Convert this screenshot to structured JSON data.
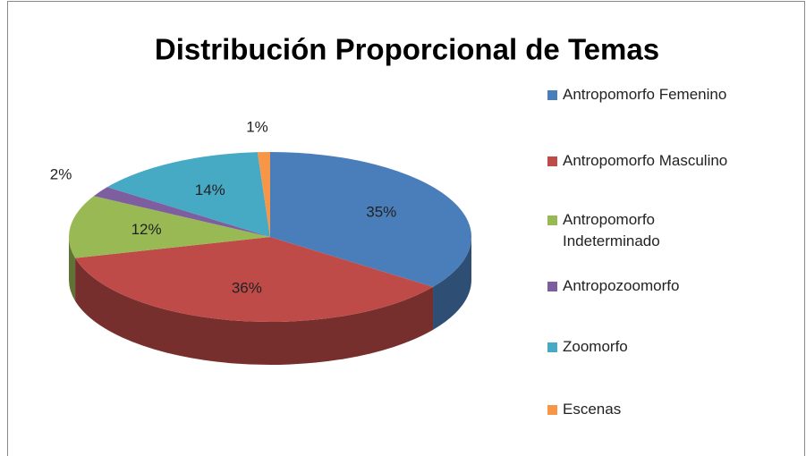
{
  "chart_data": {
    "type": "pie3d",
    "title": "Distribución Proporcional de Temas",
    "categories": [
      "Antropomorfo Femenino",
      "Antropomorfo Masculino",
      "Antropomorfo Indeterminado",
      "Antropozoomorfo",
      "Zoomorfo",
      "Escenas"
    ],
    "values": [
      35,
      36,
      12,
      2,
      14,
      1
    ],
    "value_labels": [
      "35%",
      "36%",
      "12%",
      "2%",
      "14%",
      "1%"
    ],
    "colors": [
      "#4a7ebb",
      "#be4b48",
      "#98b954",
      "#7d5fa0",
      "#46aac5",
      "#f79646"
    ],
    "legend": "right"
  }
}
